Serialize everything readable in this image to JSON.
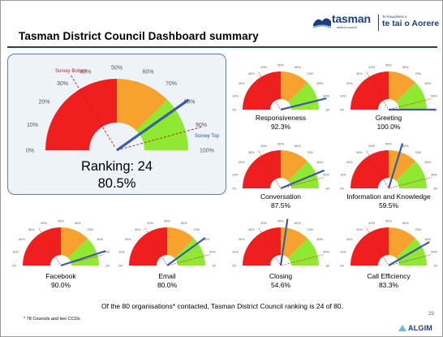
{
  "header": {
    "title": "Tasman District Council Dashboard summary",
    "logo_word": "tasman",
    "logo_sub": "district council",
    "logo_maori_small": "Te Kaunihera o",
    "logo_maori": "te tai o Aorere"
  },
  "colors": {
    "red": "#f01f1f",
    "orange": "#f7a22e",
    "green": "#8fe832",
    "needle": "#3c5aa6",
    "dashed": "#c02020",
    "rule": "#1e3e7e"
  },
  "main": {
    "ticks": [
      "0%",
      "10%",
      "20%",
      "30%",
      "40%",
      "50%",
      "60%",
      "70%",
      "80%",
      "90%",
      "100%"
    ],
    "survey_bottom": "Survey Bottom",
    "survey_top": "Survey Top",
    "ranking": "Ranking: 24",
    "value_text": "80.5%",
    "value": 0.805,
    "bottom_marker": 0.325,
    "top_marker": 0.915
  },
  "gauges": [
    {
      "key": "responsiveness",
      "label": "Responsiveness",
      "value_text": "92.3%",
      "value": 0.923
    },
    {
      "key": "greeting",
      "label": "Greeting",
      "value_text": "100.0%",
      "value": 1.0
    },
    {
      "key": "conversation",
      "label": "Conversation",
      "value_text": "87.5%",
      "value": 0.875
    },
    {
      "key": "information",
      "label": "Information and Knowledge",
      "value_text": "59.5%",
      "value": 0.595
    },
    {
      "key": "facebook",
      "label": "Facebook",
      "value_text": "90.0%",
      "value": 0.9
    },
    {
      "key": "email",
      "label": "Email",
      "value_text": "80.0%",
      "value": 0.8
    },
    {
      "key": "closing",
      "label": "Closing",
      "value_text": "54.6%",
      "value": 0.546
    },
    {
      "key": "call_efficiency",
      "label": "Call Efficiency",
      "value_text": "83.3%",
      "value": 0.833
    }
  ],
  "footer": {
    "summary": "Of the 80 organisations* contacted, Tasman District Council ranking is 24 of 80.",
    "footnote": "* 78 Councils and two CCOs",
    "page_number": "29",
    "brand": "ALGIM"
  }
}
